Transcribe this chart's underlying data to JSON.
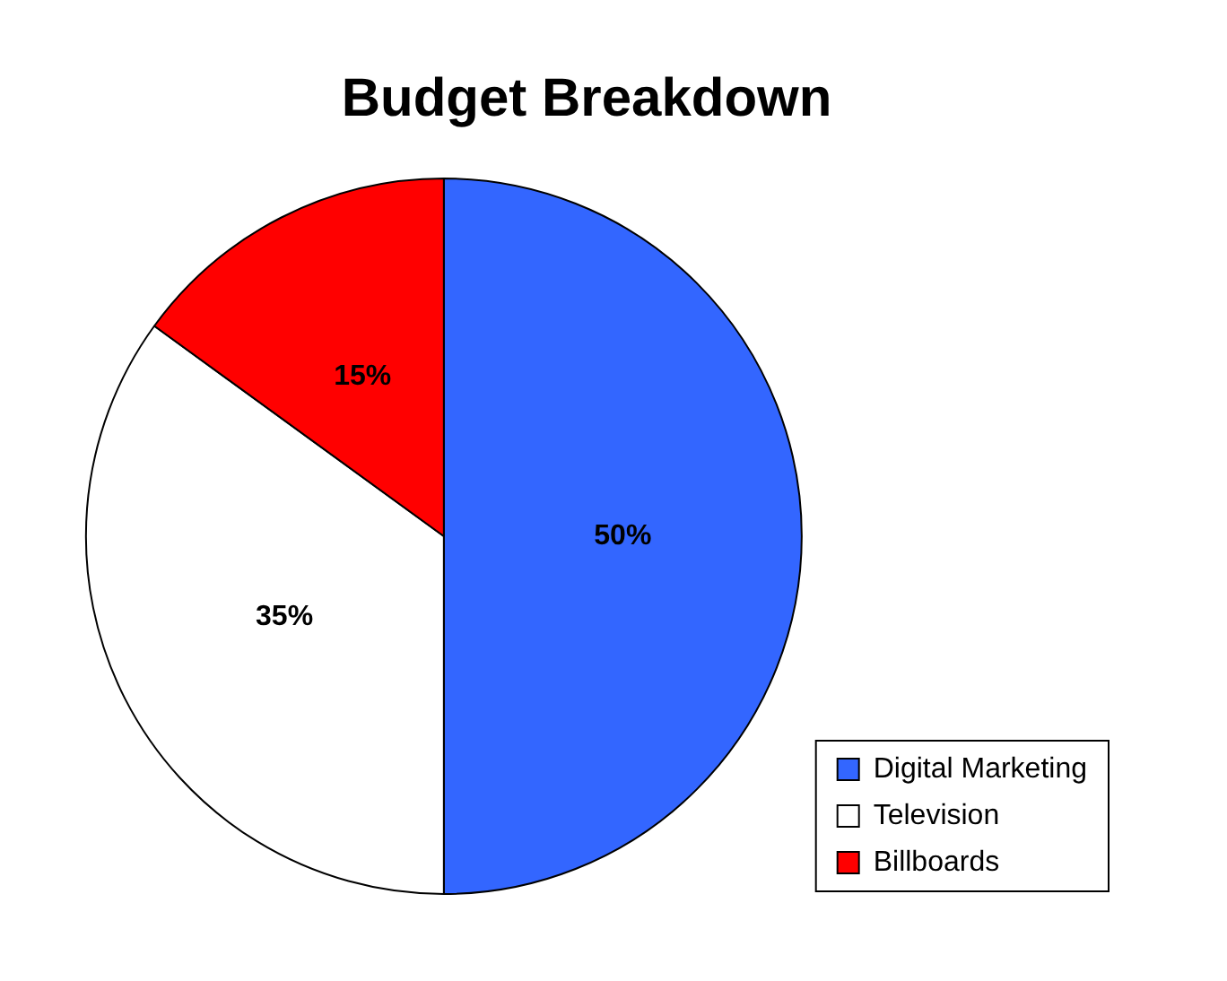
{
  "chart_data": {
    "type": "pie",
    "title": "Budget Breakdown",
    "categories": [
      "Digital Marketing",
      "Television",
      "Billboards"
    ],
    "values": [
      50,
      35,
      15
    ],
    "colors": [
      "#3366ff",
      "#ffffff",
      "#ff0000"
    ],
    "value_labels": [
      "50%",
      "35%",
      "15%"
    ],
    "legend": "bottom right"
  }
}
